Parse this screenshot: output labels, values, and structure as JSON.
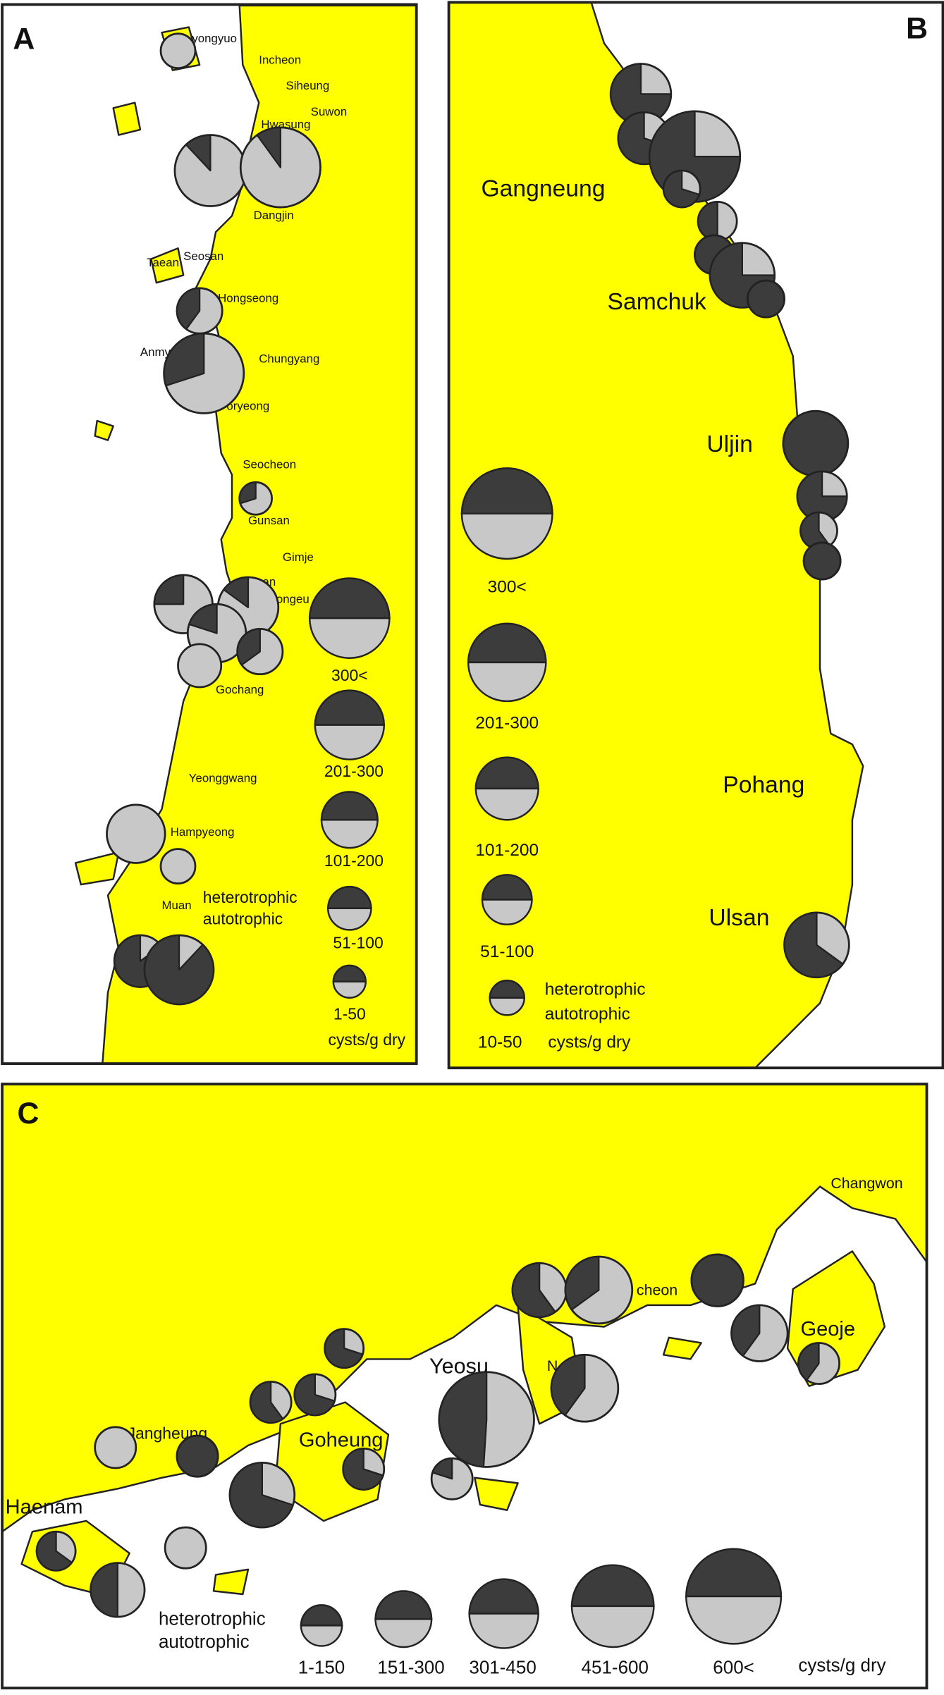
{
  "panels": [
    {
      "label": "A",
      "places": [
        "yongyuo",
        "Incheon",
        "Siheung",
        "Suwon",
        "Hwasung",
        "Dangjin",
        "Seosan",
        "Taean",
        "Hongseong",
        "Anmy",
        "Chungyang",
        "oryeong",
        "Seocheon",
        "Gunsan",
        "Gimje",
        "Buan",
        "eongeu",
        "Gochang",
        "Yeonggwang",
        "Hampyeong",
        "Muan"
      ],
      "pies_heterotrophic_percent": [
        0,
        12,
        10,
        40,
        30,
        30,
        25,
        15,
        20,
        35,
        0,
        0,
        0,
        85,
        88
      ],
      "legend": {
        "classes": [
          "300<",
          "201-300",
          "101-200",
          "51-100",
          "1-50"
        ],
        "heterotrophic": "heterotrophic",
        "autotrophic": "autotrophic",
        "unit": "cysts/g dry"
      }
    },
    {
      "label": "B",
      "places": [
        "Gangneung",
        "Samchuk",
        "Uljin",
        "Pohang",
        "Ulsan"
      ],
      "pies_heterotrophic_percent": [
        75,
        70,
        75,
        70,
        50,
        100,
        75,
        100,
        100,
        75,
        60,
        100,
        65
      ],
      "legend": {
        "classes": [
          "300<",
          "201-300",
          "101-200",
          "51-100",
          "10-50"
        ],
        "heterotrophic": "heterotrophic",
        "autotrophic": "autotrophic",
        "unit": "cysts/g dry"
      }
    },
    {
      "label": "C",
      "places": [
        "Changwon",
        "cheon",
        "Geoje",
        "Yeosu",
        "N",
        "Jangheung",
        "Goheung",
        "Haenam"
      ],
      "pies_heterotrophic_percent": [
        70,
        60,
        70,
        0,
        100,
        70,
        70,
        65,
        0,
        50,
        60,
        35,
        100,
        40,
        40,
        40,
        49,
        20
      ],
      "legend": {
        "classes": [
          "1-150",
          "151-300",
          "301-450",
          "451-600",
          "600<"
        ],
        "heterotrophic": "heterotrophic",
        "autotrophic": "autotrophic",
        "unit": "cysts/g dry"
      }
    }
  ]
}
